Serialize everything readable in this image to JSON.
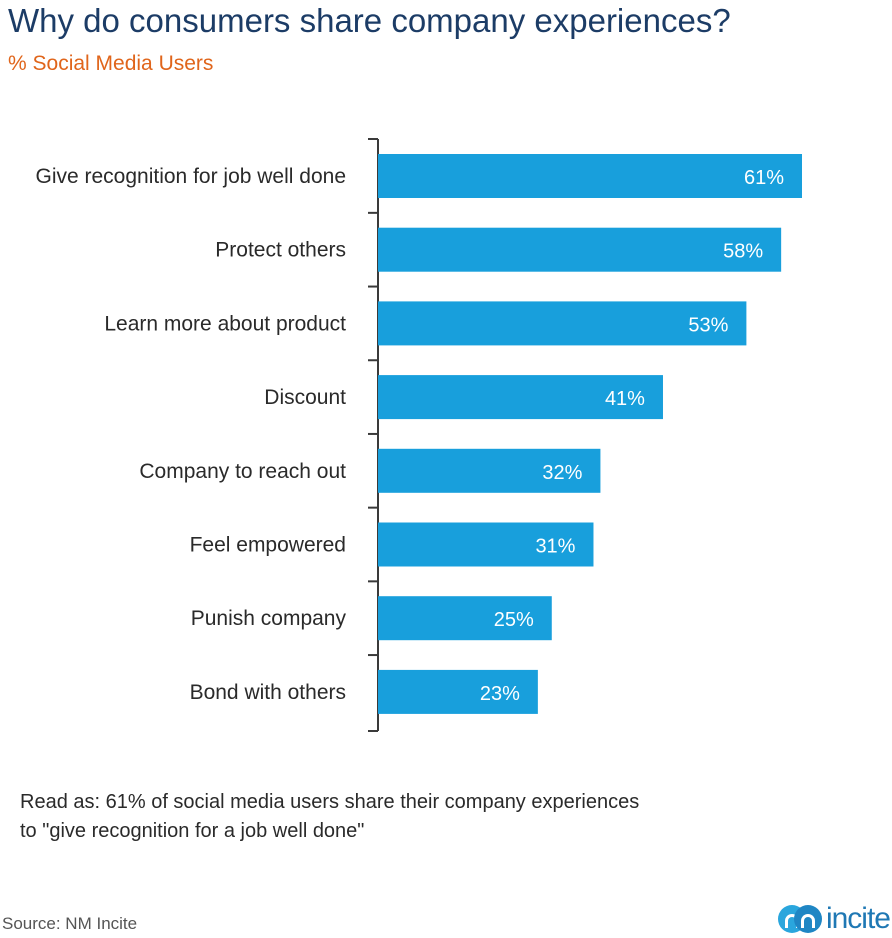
{
  "chart_data": {
    "type": "bar",
    "orientation": "horizontal",
    "title": "Why do consumers share company experiences?",
    "subtitle": "% Social Media Users",
    "categories": [
      "Give recognition for job well done",
      "Protect others",
      "Learn more about product",
      "Discount",
      "Company to reach out",
      "Feel empowered",
      "Punish company",
      "Bond with others"
    ],
    "values": [
      61,
      58,
      53,
      41,
      32,
      31,
      25,
      23
    ],
    "value_labels": [
      "61%",
      "58%",
      "53%",
      "41%",
      "32%",
      "31%",
      "25%",
      "23%"
    ],
    "xlim": [
      0,
      61
    ],
    "bar_color": "#189fdc",
    "grid": false
  },
  "footnote": {
    "line1": "Read as: 61% of social media users share their company experiences",
    "line2": "to \"give recognition for a job well done\""
  },
  "source": "Source: NM Incite",
  "logo": {
    "text": "incite"
  },
  "colors": {
    "title": "#1c3c66",
    "subtitle": "#e0651b",
    "bar": "#189fdc"
  }
}
